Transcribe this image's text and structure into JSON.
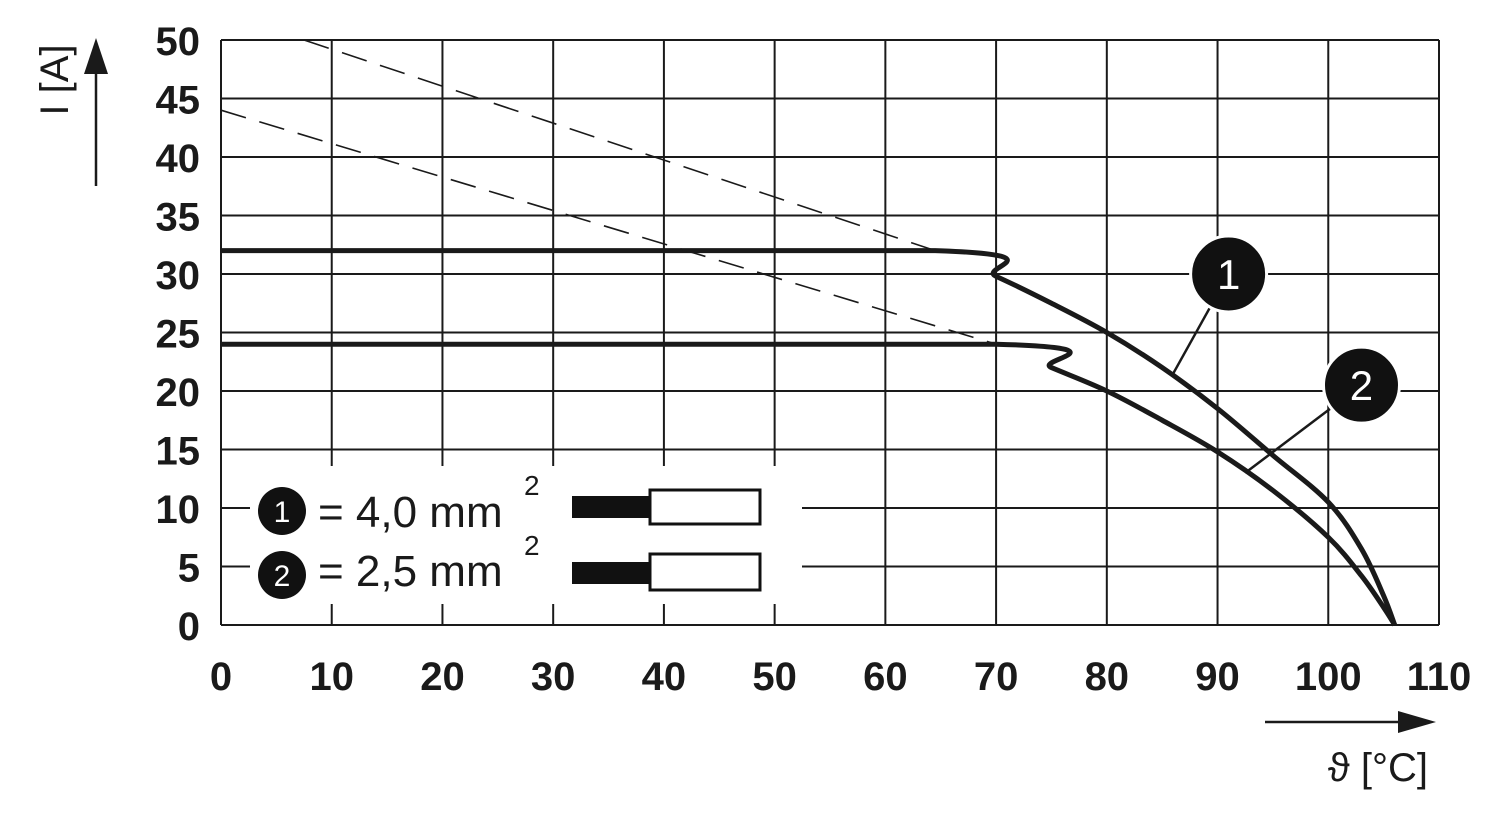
{
  "chart_data": {
    "type": "line",
    "title": "",
    "xlabel": "ϑ [°C]",
    "ylabel": "I [A]",
    "xlim": [
      0,
      110
    ],
    "ylim": [
      0,
      50
    ],
    "x_ticks": [
      "0",
      "10",
      "20",
      "30",
      "40",
      "50",
      "60",
      "70",
      "80",
      "90",
      "100",
      "110"
    ],
    "y_ticks": [
      "0",
      "5",
      "10",
      "15",
      "20",
      "25",
      "30",
      "35",
      "40",
      "45",
      "50"
    ],
    "grid": true,
    "series": [
      {
        "name": "1",
        "style": "solid",
        "points": [
          [
            0,
            32
          ],
          [
            64.5,
            32
          ],
          [
            70,
            29.8
          ],
          [
            75,
            27.5
          ],
          [
            80,
            25
          ],
          [
            85,
            22
          ],
          [
            90,
            18.5
          ],
          [
            95,
            14.5
          ],
          [
            100,
            10.5
          ],
          [
            103,
            6.5
          ],
          [
            105,
            2.5
          ],
          [
            106,
            0
          ]
        ]
      },
      {
        "name": "2",
        "style": "solid",
        "points": [
          [
            0,
            24
          ],
          [
            70,
            24
          ],
          [
            75,
            22
          ],
          [
            80,
            20
          ],
          [
            85,
            17.5
          ],
          [
            90,
            14.8
          ],
          [
            95,
            11.5
          ],
          [
            100,
            7.5
          ],
          [
            103,
            4.2
          ],
          [
            105,
            1.5
          ],
          [
            106,
            0
          ]
        ]
      },
      {
        "name": "",
        "style": "dashed",
        "points": [
          [
            7.5,
            50
          ],
          [
            64.5,
            32
          ]
        ]
      },
      {
        "name": "",
        "style": "dashed",
        "points": [
          [
            0,
            44
          ],
          [
            70,
            24
          ]
        ]
      }
    ],
    "annotations": [
      {
        "label": "1",
        "x": 91,
        "y": 30,
        "target": [
          86,
          21.5
        ]
      },
      {
        "label": "2",
        "x": 103,
        "y": 20.5,
        "target": [
          92.5,
          13
        ]
      }
    ],
    "legend": {
      "position": "bottom-left",
      "entries": [
        {
          "badge": "1",
          "text": "= 4,0 mm",
          "sup": "2"
        },
        {
          "badge": "2",
          "text": "= 2,5 mm",
          "sup": "2"
        }
      ]
    }
  }
}
